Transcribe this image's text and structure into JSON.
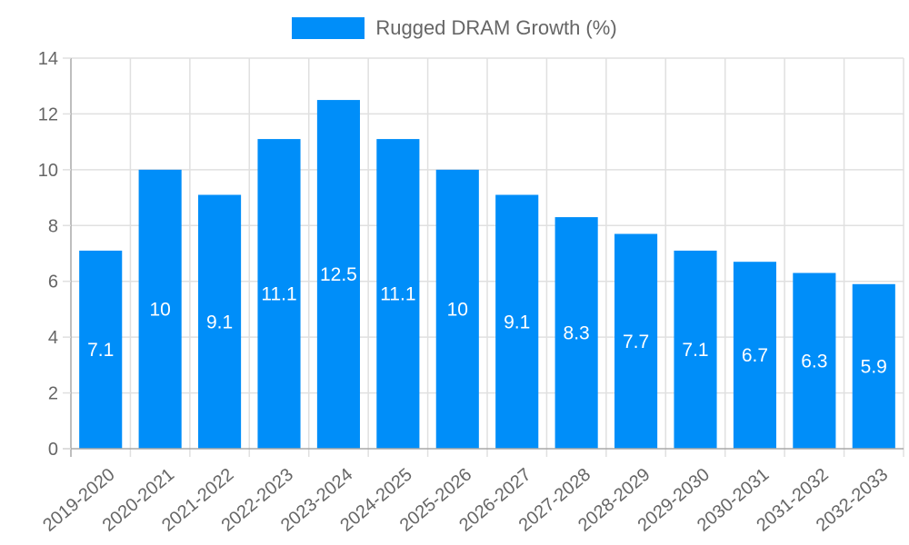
{
  "legend": {
    "label": "Rugged DRAM Growth (%)",
    "color": "#008ef9"
  },
  "colors": {
    "bar": "#008ef9",
    "grid": "#e0e0e0",
    "axis": "#a8a8a8",
    "tick_text": "#666666",
    "data_label": "#ffffff"
  },
  "chart_data": {
    "type": "bar",
    "title": "",
    "xlabel": "",
    "ylabel": "",
    "categories": [
      "2019-2020",
      "2020-2021",
      "2021-2022",
      "2022-2023",
      "2023-2024",
      "2024-2025",
      "2025-2026",
      "2026-2027",
      "2027-2028",
      "2028-2029",
      "2029-2030",
      "2030-2031",
      "2031-2032",
      "2032-2033"
    ],
    "series": [
      {
        "name": "Rugged DRAM Growth (%)",
        "values": [
          7.1,
          10,
          9.1,
          11.1,
          12.5,
          11.1,
          10,
          9.1,
          8.3,
          7.7,
          7.1,
          6.7,
          6.3,
          5.9
        ]
      }
    ],
    "ylim": [
      0,
      14
    ],
    "yticks": [
      0,
      2,
      4,
      6,
      8,
      10,
      12,
      14
    ],
    "grid": true,
    "legend_position": "top",
    "data_labels": true
  }
}
